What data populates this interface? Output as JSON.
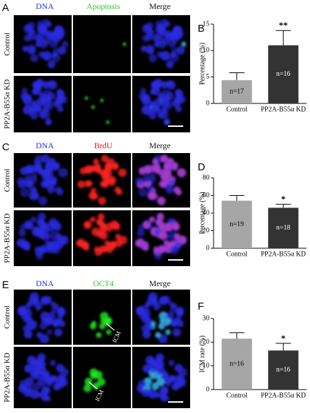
{
  "panels": [
    {
      "letter": "A",
      "headers": [
        "DNA",
        "Apoptosis",
        "Merge"
      ],
      "rows": [
        "Control",
        "PP2A-B55α KD"
      ]
    },
    {
      "letter": "C",
      "headers": [
        "DNA",
        "BrdU",
        "Merge"
      ],
      "rows": [
        "Control",
        "PP2A-B55α KD"
      ]
    },
    {
      "letter": "E",
      "headers": [
        "DNA",
        "OCT4",
        "Merge"
      ],
      "rows": [
        "Control",
        "PP2A-B55α KD"
      ],
      "annotations": [
        "ICM",
        "ICM"
      ]
    }
  ],
  "chart_data": [
    {
      "type": "bar",
      "letter": "B",
      "ylabel": "Percentage (%)",
      "categories": [
        "Control",
        "PP2A-B55α KD"
      ],
      "values": [
        4.4,
        11.0
      ],
      "errors": [
        1.4,
        2.8
      ],
      "bar_labels": [
        "n=17",
        "n=16"
      ],
      "significance": [
        null,
        "**"
      ],
      "colors": [
        "#a6a6a6",
        "#333333"
      ],
      "ylim": [
        0,
        15
      ],
      "yticks": [
        0,
        5,
        10,
        15
      ]
    },
    {
      "type": "bar",
      "letter": "D",
      "ylabel": "Percentage (%)",
      "categories": [
        "Control",
        "PP2A-B55α KD"
      ],
      "values": [
        54,
        46
      ],
      "errors": [
        6,
        4
      ],
      "bar_labels": [
        "n=19",
        "n=18"
      ],
      "significance": [
        null,
        "*"
      ],
      "colors": [
        "#a6a6a6",
        "#333333"
      ],
      "ylim": [
        0,
        80
      ],
      "yticks": [
        0,
        20,
        40,
        60,
        80
      ]
    },
    {
      "type": "bar",
      "letter": "F",
      "ylabel": "ICM rate (%)",
      "categories": [
        "Control",
        "PP2A-B55α KD"
      ],
      "values": [
        21.5,
        16.5
      ],
      "errors": [
        2.5,
        3
      ],
      "bar_labels": [
        "n=16",
        "n=16"
      ],
      "significance": [
        null,
        "*"
      ],
      "colors": [
        "#a6a6a6",
        "#333333"
      ],
      "ylim": [
        0,
        30
      ],
      "yticks": [
        0,
        10,
        20,
        30
      ]
    }
  ]
}
